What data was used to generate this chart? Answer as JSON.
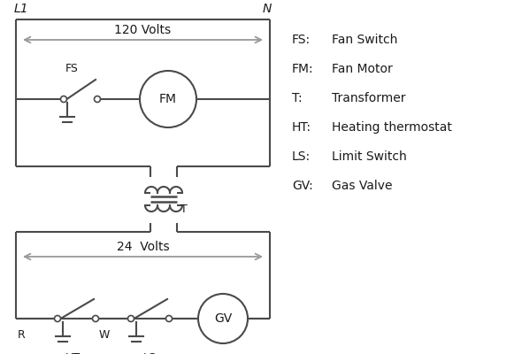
{
  "bg_color": "#ffffff",
  "line_color": "#4a4a4a",
  "arrow_color": "#999999",
  "text_color": "#1a1a1a",
  "legend_items": [
    [
      "FS:",
      "Fan Switch"
    ],
    [
      "FM:",
      "Fan Motor"
    ],
    [
      "T:",
      "Transformer"
    ],
    [
      "HT:",
      "Heating thermostat"
    ],
    [
      "LS:",
      "Limit Switch"
    ],
    [
      "GV:",
      "Gas Valve"
    ]
  ],
  "L1_label": "L1",
  "N_label": "N",
  "volts120_label": "120 Volts",
  "volts24_label": "24  Volts",
  "T_label": "T",
  "R_label": "R",
  "W_label": "W",
  "HT_label": "HT",
  "LS_label": "LS",
  "FS_label": "FS",
  "FM_label": "FM",
  "GV_label": "GV",
  "fontsize_label": 9,
  "fontsize_legend": 10,
  "fontsize_L1N": 10
}
